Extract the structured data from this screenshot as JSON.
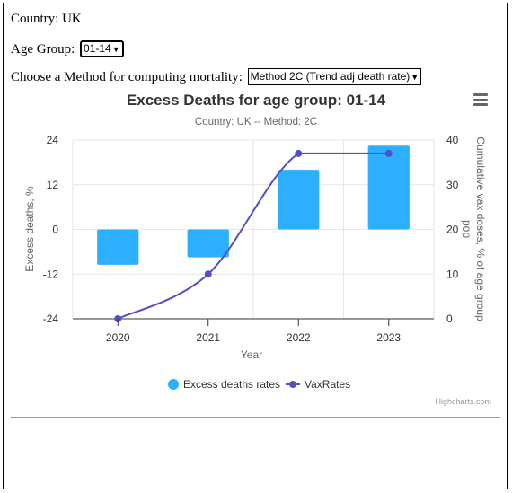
{
  "controls": {
    "country_text": "Country: UK",
    "age_group_label": "Age Group:",
    "age_group_value": "01-14",
    "method_label": "Choose a Method for computing mortality:",
    "method_value": "Method 2C (Trend adj death rate)"
  },
  "chart_data": {
    "type": "bar",
    "title": "Excess Deaths for age group: 01-14",
    "subtitle": "Country: UK -- Method: 2C",
    "xlabel": "Year",
    "ylabel": "Excess deaths, %",
    "y2label": "Cumulative vax doses, % of age group pop",
    "categories": [
      "2020",
      "2021",
      "2022",
      "2023"
    ],
    "ylim": [
      -24,
      24
    ],
    "yticks": [
      24,
      12,
      0,
      -12,
      -24
    ],
    "y2lim": [
      0,
      40
    ],
    "y2ticks": [
      40,
      30,
      20,
      10,
      0
    ],
    "grid": true,
    "legend_position": "bottom",
    "series": [
      {
        "name": "Excess deaths rates",
        "type": "bar",
        "axis": "left",
        "color": "#2caffe",
        "values": [
          -9.5,
          -7.5,
          16,
          22.5
        ]
      },
      {
        "name": "VaxRates",
        "type": "line",
        "axis": "right",
        "color": "#544fc5",
        "values": [
          0,
          10,
          37,
          37
        ]
      }
    ],
    "credits": "Highcharts.com"
  }
}
